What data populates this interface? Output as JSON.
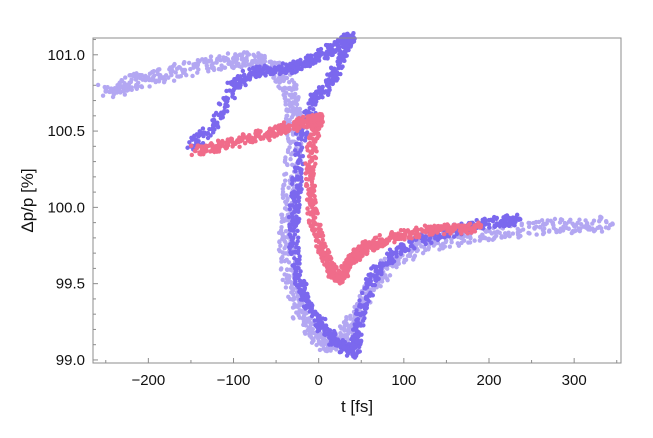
{
  "chart_data": {
    "type": "scatter",
    "title": "",
    "xlabel": "t [fs]",
    "ylabel": "Δp/p [%]",
    "xlim": [
      -265,
      355
    ],
    "ylim": [
      98.98,
      101.11
    ],
    "xticks": [
      -200,
      -100,
      0,
      100,
      200,
      300
    ],
    "xtick_labels": [
      "−200",
      "−100",
      "0",
      "100",
      "200",
      "300"
    ],
    "yticks": [
      99.0,
      99.5,
      100.0,
      100.5,
      101.0
    ],
    "ytick_labels": [
      "99.0",
      "99.5",
      "100.0",
      "100.5",
      "101.0"
    ],
    "grid": false,
    "legend": "none",
    "series": [
      {
        "color": "#b3a7f2",
        "style": "scattered points (light lavender)",
        "points": [
          [
            -250,
            100.76
          ],
          [
            -225,
            100.8
          ],
          [
            -200,
            100.85
          ],
          [
            -160,
            100.9
          ],
          [
            -120,
            100.95
          ],
          [
            -90,
            100.97
          ],
          [
            -70,
            100.96
          ],
          [
            -50,
            100.9
          ],
          [
            -35,
            100.78
          ],
          [
            -30,
            100.65
          ],
          [
            -28,
            100.5
          ],
          [
            -32,
            100.2
          ],
          [
            -36,
            99.95
          ],
          [
            -38,
            99.75
          ],
          [
            -35,
            99.55
          ],
          [
            -25,
            99.35
          ],
          [
            -10,
            99.2
          ],
          [
            5,
            99.12
          ],
          [
            20,
            99.1
          ],
          [
            35,
            99.2
          ],
          [
            50,
            99.35
          ],
          [
            70,
            99.55
          ],
          [
            95,
            99.68
          ],
          [
            130,
            99.76
          ],
          [
            170,
            99.81
          ],
          [
            210,
            99.84
          ],
          [
            260,
            99.87
          ],
          [
            300,
            99.88
          ],
          [
            345,
            99.89
          ]
        ]
      },
      {
        "color": "#7b68ee",
        "style": "dense points (medium slate blue)",
        "points": [
          [
            -150,
            100.4
          ],
          [
            -120,
            100.55
          ],
          [
            -100,
            100.8
          ],
          [
            -80,
            100.88
          ],
          [
            -55,
            100.9
          ],
          [
            -30,
            100.92
          ],
          [
            -10,
            100.97
          ],
          [
            10,
            101.02
          ],
          [
            30,
            101.08
          ],
          [
            38,
            101.12
          ],
          [
            25,
            100.95
          ],
          [
            10,
            100.8
          ],
          [
            -5,
            100.7
          ],
          [
            -20,
            100.5
          ],
          [
            -25,
            100.2
          ],
          [
            -28,
            100.0
          ],
          [
            -30,
            99.8
          ],
          [
            -25,
            99.55
          ],
          [
            -15,
            99.4
          ],
          [
            0,
            99.25
          ],
          [
            15,
            99.15
          ],
          [
            30,
            99.08
          ],
          [
            40,
            99.05
          ],
          [
            45,
            99.12
          ],
          [
            50,
            99.3
          ],
          [
            60,
            99.5
          ],
          [
            75,
            99.63
          ],
          [
            100,
            99.74
          ],
          [
            140,
            99.82
          ],
          [
            180,
            99.88
          ],
          [
            215,
            99.91
          ],
          [
            235,
            99.92
          ]
        ]
      },
      {
        "color": "#f06c8a",
        "style": "dense points (pink)",
        "points": [
          [
            -145,
            100.37
          ],
          [
            -120,
            100.4
          ],
          [
            -90,
            100.44
          ],
          [
            -60,
            100.48
          ],
          [
            -40,
            100.52
          ],
          [
            -20,
            100.55
          ],
          [
            -5,
            100.57
          ],
          [
            0,
            100.58
          ],
          [
            -5,
            100.5
          ],
          [
            -10,
            100.3
          ],
          [
            -10,
            100.1
          ],
          [
            -5,
            99.9
          ],
          [
            3,
            99.75
          ],
          [
            12,
            99.62
          ],
          [
            22,
            99.53
          ],
          [
            30,
            99.56
          ],
          [
            38,
            99.66
          ],
          [
            45,
            99.7
          ],
          [
            55,
            99.74
          ],
          [
            75,
            99.78
          ],
          [
            100,
            99.82
          ],
          [
            130,
            99.85
          ],
          [
            160,
            99.86
          ],
          [
            190,
            99.87
          ]
        ]
      }
    ]
  }
}
